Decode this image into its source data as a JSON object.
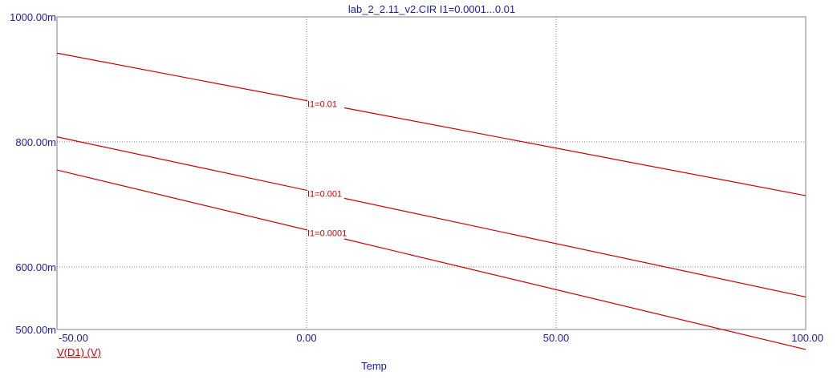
{
  "chart_data": {
    "type": "line",
    "title": "lab_2_2.11_v2.CIR I1=0.0001...0.01",
    "xlabel": "Temp",
    "ylabel": "V(D1) (V)",
    "xlim": [
      -50,
      100
    ],
    "ylim": [
      500,
      1000
    ],
    "x_ticks": [
      "-50.00",
      "0.00",
      "50.00",
      "100.00"
    ],
    "y_ticks": [
      "1000.00m",
      "800.00m",
      "600.00m",
      "500.00m"
    ],
    "x_grid": [
      0,
      50
    ],
    "y_grid": [
      800,
      600
    ],
    "grid": true,
    "colors": {
      "axis_text": "#1a1aa6",
      "series": "#cc0000",
      "grid": "#7f7f7f",
      "frame": "#808080"
    },
    "series": [
      {
        "name": "I1=0.01",
        "x": [
          -50,
          100
        ],
        "y": [
          942,
          714
        ]
      },
      {
        "name": "I1=0.001",
        "x": [
          -50,
          100
        ],
        "y": [
          808,
          552
        ]
      },
      {
        "name": "I1=0.0001",
        "x": [
          -50,
          100
        ],
        "y": [
          755,
          468
        ]
      }
    ]
  }
}
